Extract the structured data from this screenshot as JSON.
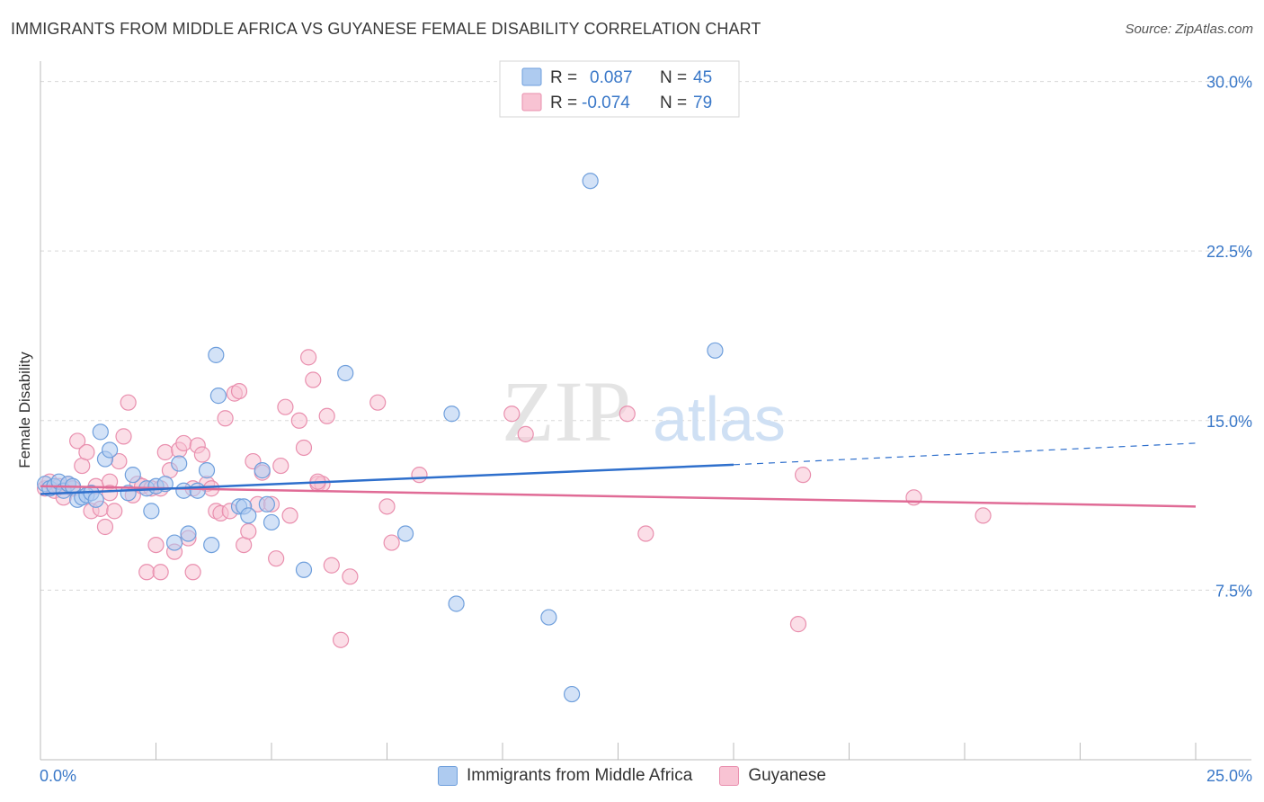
{
  "header": {
    "title": "IMMIGRANTS FROM MIDDLE AFRICA VS GUYANESE FEMALE DISABILITY CORRELATION CHART",
    "source": "Source: ZipAtlas.com"
  },
  "watermark": {
    "zip": "ZIP",
    "atlas": "atlas"
  },
  "colors": {
    "blue_fill": "#aecbf0",
    "blue_stroke": "#6f9fdc",
    "blue_line": "#2e6fcc",
    "pink_fill": "#f8c3d3",
    "pink_stroke": "#e98fae",
    "pink_line": "#e06b96",
    "tick_label": "#3a78c8",
    "grid": "#d8d8d8"
  },
  "legend_top": {
    "rows": [
      {
        "r_label": "R =",
        "r_value": "0.087",
        "n_label": "N =",
        "n_value": "45",
        "color": "#aecbf0"
      },
      {
        "r_label": "R =",
        "r_value": "-0.074",
        "n_label": "N =",
        "n_value": "79",
        "color": "#f8c3d3"
      }
    ]
  },
  "legend_bottom": [
    "Immigrants from Middle Africa",
    "Guyanese"
  ],
  "chart_data": {
    "type": "scatter",
    "title": "IMMIGRANTS FROM MIDDLE AFRICA VS GUYANESE FEMALE DISABILITY CORRELATION CHART",
    "xlabel": "",
    "ylabel": "Female Disability",
    "xlim": [
      0,
      25
    ],
    "ylim": [
      0,
      30.5
    ],
    "x_tick_labels": [
      "0.0%",
      "25.0%"
    ],
    "y_ticks": [
      7.5,
      15.0,
      22.5,
      30.0
    ],
    "y_tick_labels": [
      "7.5%",
      "15.0%",
      "22.5%",
      "30.0%"
    ],
    "grid": true,
    "legend_position": "top-center",
    "series": [
      {
        "name": "Immigrants from Middle Africa",
        "r": 0.087,
        "n": 45,
        "trend": {
          "x0": 0,
          "y0": 11.75,
          "x1": 15,
          "y1": 13.05,
          "dash_to_x": 25,
          "dash_to_y": 14.0
        },
        "points": [
          [
            0.1,
            12.2
          ],
          [
            0.2,
            12.0
          ],
          [
            0.3,
            12.1
          ],
          [
            0.4,
            12.3
          ],
          [
            0.5,
            11.9
          ],
          [
            0.6,
            12.2
          ],
          [
            0.7,
            12.1
          ],
          [
            0.8,
            11.5
          ],
          [
            0.9,
            11.6
          ],
          [
            1.0,
            11.7
          ],
          [
            1.1,
            11.8
          ],
          [
            1.2,
            11.5
          ],
          [
            1.3,
            14.5
          ],
          [
            1.4,
            13.3
          ],
          [
            1.5,
            13.7
          ],
          [
            1.9,
            11.8
          ],
          [
            2.0,
            12.6
          ],
          [
            2.3,
            12.0
          ],
          [
            2.4,
            11.0
          ],
          [
            2.5,
            12.1
          ],
          [
            2.7,
            12.2
          ],
          [
            2.9,
            9.6
          ],
          [
            3.0,
            13.1
          ],
          [
            3.1,
            11.9
          ],
          [
            3.2,
            10.0
          ],
          [
            3.4,
            11.9
          ],
          [
            3.6,
            12.8
          ],
          [
            3.8,
            17.9
          ],
          [
            3.85,
            16.1
          ],
          [
            3.7,
            9.5
          ],
          [
            4.3,
            11.2
          ],
          [
            4.4,
            11.2
          ],
          [
            4.5,
            10.8
          ],
          [
            4.8,
            12.8
          ],
          [
            4.9,
            11.3
          ],
          [
            5.0,
            10.5
          ],
          [
            5.7,
            8.4
          ],
          [
            6.6,
            17.1
          ],
          [
            7.9,
            10.0
          ],
          [
            8.9,
            15.3
          ],
          [
            9.0,
            6.9
          ],
          [
            11.0,
            6.3
          ],
          [
            11.5,
            2.9
          ],
          [
            11.9,
            25.6
          ],
          [
            14.6,
            18.1
          ]
        ]
      },
      {
        "name": "Guyanese",
        "r": -0.074,
        "n": 79,
        "trend": {
          "x0": 0,
          "y0": 12.1,
          "x1": 25,
          "y1": 11.2
        },
        "points": [
          [
            0.1,
            12.0
          ],
          [
            0.2,
            12.3
          ],
          [
            0.3,
            11.9
          ],
          [
            0.4,
            12.1
          ],
          [
            0.5,
            11.6
          ],
          [
            0.6,
            12.2
          ],
          [
            0.7,
            12.0
          ],
          [
            0.8,
            14.1
          ],
          [
            0.9,
            13.0
          ],
          [
            1.0,
            13.6
          ],
          [
            1.1,
            11.0
          ],
          [
            1.2,
            12.1
          ],
          [
            1.3,
            11.1
          ],
          [
            1.4,
            10.3
          ],
          [
            1.5,
            12.3
          ],
          [
            1.6,
            11.0
          ],
          [
            1.7,
            13.2
          ],
          [
            1.8,
            14.3
          ],
          [
            1.9,
            15.8
          ],
          [
            2.0,
            11.7
          ],
          [
            2.1,
            12.2
          ],
          [
            2.2,
            12.1
          ],
          [
            2.3,
            8.3
          ],
          [
            2.4,
            12.0
          ],
          [
            2.5,
            9.5
          ],
          [
            2.6,
            8.3
          ],
          [
            2.7,
            13.6
          ],
          [
            2.8,
            12.8
          ],
          [
            2.9,
            9.2
          ],
          [
            3.0,
            13.7
          ],
          [
            3.1,
            14.0
          ],
          [
            3.2,
            9.8
          ],
          [
            3.3,
            8.3
          ],
          [
            3.4,
            13.9
          ],
          [
            3.5,
            13.5
          ],
          [
            3.6,
            12.2
          ],
          [
            3.7,
            12.0
          ],
          [
            3.8,
            11.0
          ],
          [
            3.9,
            10.9
          ],
          [
            4.0,
            15.1
          ],
          [
            4.1,
            11.0
          ],
          [
            4.2,
            16.2
          ],
          [
            4.3,
            16.3
          ],
          [
            4.4,
            9.5
          ],
          [
            4.5,
            10.1
          ],
          [
            4.6,
            13.2
          ],
          [
            4.7,
            11.3
          ],
          [
            4.8,
            12.7
          ],
          [
            5.0,
            11.3
          ],
          [
            5.1,
            8.9
          ],
          [
            5.2,
            13.0
          ],
          [
            5.3,
            15.6
          ],
          [
            5.4,
            10.8
          ],
          [
            5.6,
            15.0
          ],
          [
            5.7,
            13.8
          ],
          [
            5.8,
            17.8
          ],
          [
            5.9,
            16.8
          ],
          [
            6.0,
            12.2
          ],
          [
            6.1,
            12.2
          ],
          [
            6.2,
            15.2
          ],
          [
            6.3,
            8.6
          ],
          [
            6.5,
            5.3
          ],
          [
            6.7,
            8.1
          ],
          [
            7.3,
            15.8
          ],
          [
            7.5,
            11.2
          ],
          [
            7.6,
            9.6
          ],
          [
            8.2,
            12.6
          ],
          [
            10.2,
            15.3
          ],
          [
            10.5,
            14.4
          ],
          [
            12.7,
            15.3
          ],
          [
            13.1,
            10.0
          ],
          [
            16.4,
            6.0
          ],
          [
            16.5,
            12.6
          ],
          [
            18.9,
            11.6
          ],
          [
            20.4,
            10.8
          ],
          [
            6.0,
            12.3
          ],
          [
            3.3,
            12.0
          ],
          [
            2.6,
            12.0
          ],
          [
            1.5,
            11.8
          ]
        ]
      }
    ]
  }
}
